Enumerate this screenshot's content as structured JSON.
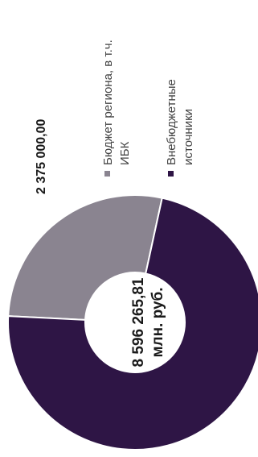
{
  "chart_data": {
    "type": "pie",
    "center_total": "8 596 265,81",
    "center_unit": "млн. руб.",
    "slices": [
      {
        "name": "Бюджет региона, в т.ч. ИБК",
        "legend_lines": [
          "Бюджет региона, в т.ч.",
          "ИБК"
        ],
        "value": 2375000.0,
        "label": "2 375 000,00",
        "color": "#8a8490"
      },
      {
        "name": "Внебюджетные источники",
        "legend_lines": [
          "Внебюджетные",
          "источники"
        ],
        "value": 6221265.81,
        "label": "",
        "color": "#2e1545"
      }
    ]
  }
}
